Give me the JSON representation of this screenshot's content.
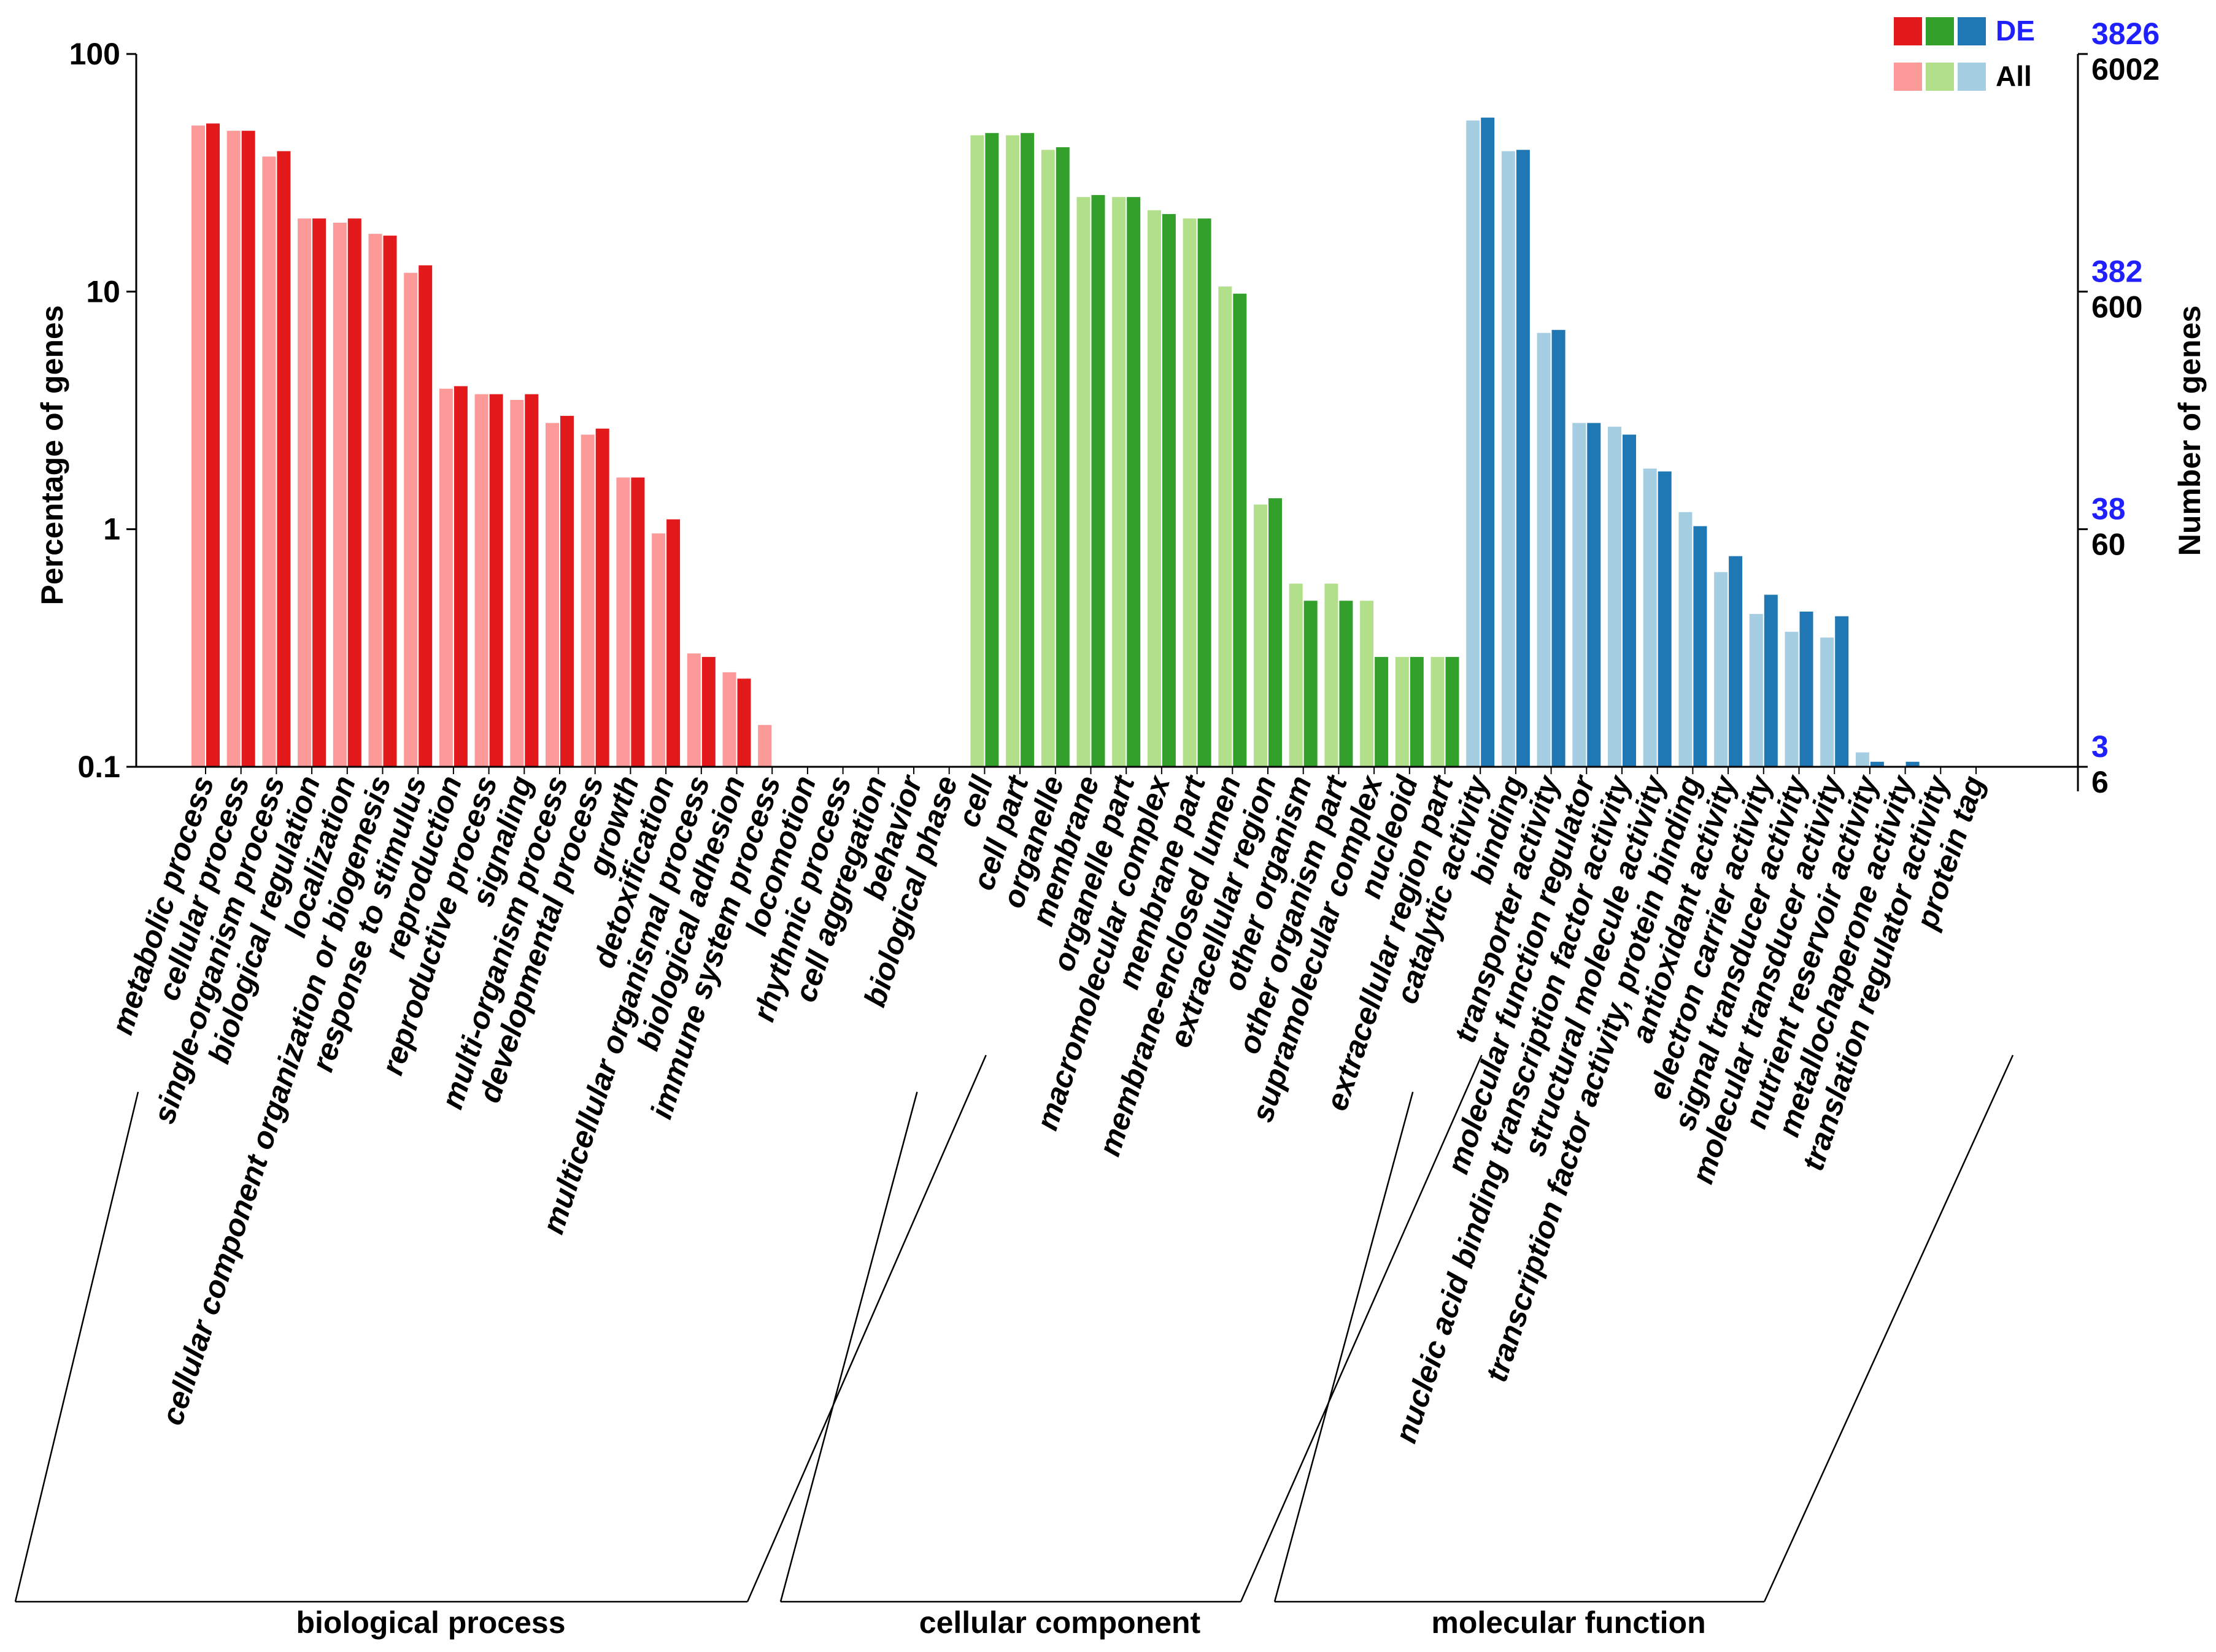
{
  "chart_data": {
    "type": "bar",
    "scale": "log",
    "y_left": {
      "label": "Percentage of genes",
      "ticks": [
        {
          "value": 0.1,
          "label": "0.1"
        },
        {
          "value": 1,
          "label": "1"
        },
        {
          "value": 10,
          "label": "10"
        },
        {
          "value": 100,
          "label": "100"
        }
      ],
      "ylim": [
        0.1,
        100
      ]
    },
    "y_right": {
      "label": "Number of genes",
      "ticks": [
        {
          "de": "3826",
          "all": "6002"
        },
        {
          "de": "382",
          "all": "600"
        },
        {
          "de": "38",
          "all": "60"
        },
        {
          "de": "3",
          "all": "6"
        }
      ]
    },
    "legend": {
      "de_label": "DE",
      "all_label": "All",
      "position": "top-right"
    },
    "series": [
      {
        "name": "All"
      },
      {
        "name": "DE"
      }
    ],
    "groups": [
      {
        "name": "biological process",
        "colors": {
          "de": "#e31a1c",
          "all": "#fb9a99"
        },
        "categories": [
          {
            "label": "metabolic process",
            "all": 50,
            "de": 51
          },
          {
            "label": "cellular process",
            "all": 47.5,
            "de": 47.5
          },
          {
            "label": "single-organism process",
            "all": 37,
            "de": 39
          },
          {
            "label": "biological regulation",
            "all": 20.3,
            "de": 20.3
          },
          {
            "label": "localization",
            "all": 19.5,
            "de": 20.3
          },
          {
            "label": "cellular component organization or biogenesis",
            "all": 17.5,
            "de": 17.2
          },
          {
            "label": "response to stimulus",
            "all": 12,
            "de": 12.9
          },
          {
            "label": "reproduction",
            "all": 3.9,
            "de": 4.0
          },
          {
            "label": "reproductive process",
            "all": 3.7,
            "de": 3.7
          },
          {
            "label": "signaling",
            "all": 3.5,
            "de": 3.7
          },
          {
            "label": "multi-organism process",
            "all": 2.8,
            "de": 3.0
          },
          {
            "label": "developmental process",
            "all": 2.5,
            "de": 2.65
          },
          {
            "label": "growth",
            "all": 1.65,
            "de": 1.65
          },
          {
            "label": "detoxification",
            "all": 0.96,
            "de": 1.1
          },
          {
            "label": "multicellular organismal process",
            "all": 0.3,
            "de": 0.29
          },
          {
            "label": "biological adhesion",
            "all": 0.25,
            "de": 0.235
          },
          {
            "label": "immune system process",
            "all": 0.15,
            "de": 0
          },
          {
            "label": "locomotion",
            "all": 0,
            "de": 0
          },
          {
            "label": "rhythmic process",
            "all": 0,
            "de": 0
          },
          {
            "label": "cell aggregation",
            "all": 0,
            "de": 0
          },
          {
            "label": "behavior",
            "all": 0,
            "de": 0
          },
          {
            "label": "biological phase",
            "all": 0,
            "de": 0
          }
        ]
      },
      {
        "name": "cellular component",
        "colors": {
          "de": "#33a02c",
          "all": "#b2df8a"
        },
        "categories": [
          {
            "label": "cell",
            "all": 45.5,
            "de": 46.5
          },
          {
            "label": "cell part",
            "all": 45.5,
            "de": 46.5
          },
          {
            "label": "organelle",
            "all": 39.5,
            "de": 40.5
          },
          {
            "label": "membrane",
            "all": 25,
            "de": 25.5
          },
          {
            "label": "organelle part",
            "all": 25,
            "de": 25
          },
          {
            "label": "macromolecular complex",
            "all": 22,
            "de": 21.2
          },
          {
            "label": "membrane part",
            "all": 20.3,
            "de": 20.3
          },
          {
            "label": "membrane-enclosed lumen",
            "all": 10.5,
            "de": 9.8
          },
          {
            "label": "extracellular region",
            "all": 1.27,
            "de": 1.35
          },
          {
            "label": "other organism",
            "all": 0.59,
            "de": 0.5
          },
          {
            "label": "other organism part",
            "all": 0.59,
            "de": 0.5
          },
          {
            "label": "supramolecular complex",
            "all": 0.5,
            "de": 0.29
          },
          {
            "label": "nucleoid",
            "all": 0.29,
            "de": 0.29
          },
          {
            "label": "extracellular region part",
            "all": 0.29,
            "de": 0.29
          }
        ]
      },
      {
        "name": "molecular function",
        "colors": {
          "de": "#1f78b4",
          "all": "#a6cee3"
        },
        "categories": [
          {
            "label": "catalytic activity",
            "all": 52.5,
            "de": 54
          },
          {
            "label": "binding",
            "all": 39,
            "de": 39.5
          },
          {
            "label": "transporter activity",
            "all": 6.7,
            "de": 6.9
          },
          {
            "label": "molecular function regulator",
            "all": 2.8,
            "de": 2.8
          },
          {
            "label": "nucleic acid binding transcription factor activity",
            "all": 2.7,
            "de": 2.5
          },
          {
            "label": "structural molecule activity",
            "all": 1.8,
            "de": 1.75
          },
          {
            "label": "transcription factor activity, protein binding",
            "all": 1.18,
            "de": 1.03
          },
          {
            "label": "antioxidant activity",
            "all": 0.66,
            "de": 0.77
          },
          {
            "label": "electron carrier activity",
            "all": 0.44,
            "de": 0.53
          },
          {
            "label": "signal transducer activity",
            "all": 0.37,
            "de": 0.45
          },
          {
            "label": "molecular transducer activity",
            "all": 0.35,
            "de": 0.43
          },
          {
            "label": "nutrient reservoir activity",
            "all": 0.115,
            "de": 0.105
          },
          {
            "label": "metallochaperone activity",
            "all": 0,
            "de": 0.105
          },
          {
            "label": "translation regulator activity",
            "all": 0,
            "de": 0
          },
          {
            "label": "protein tag",
            "all": 0,
            "de": 0
          }
        ]
      }
    ]
  }
}
